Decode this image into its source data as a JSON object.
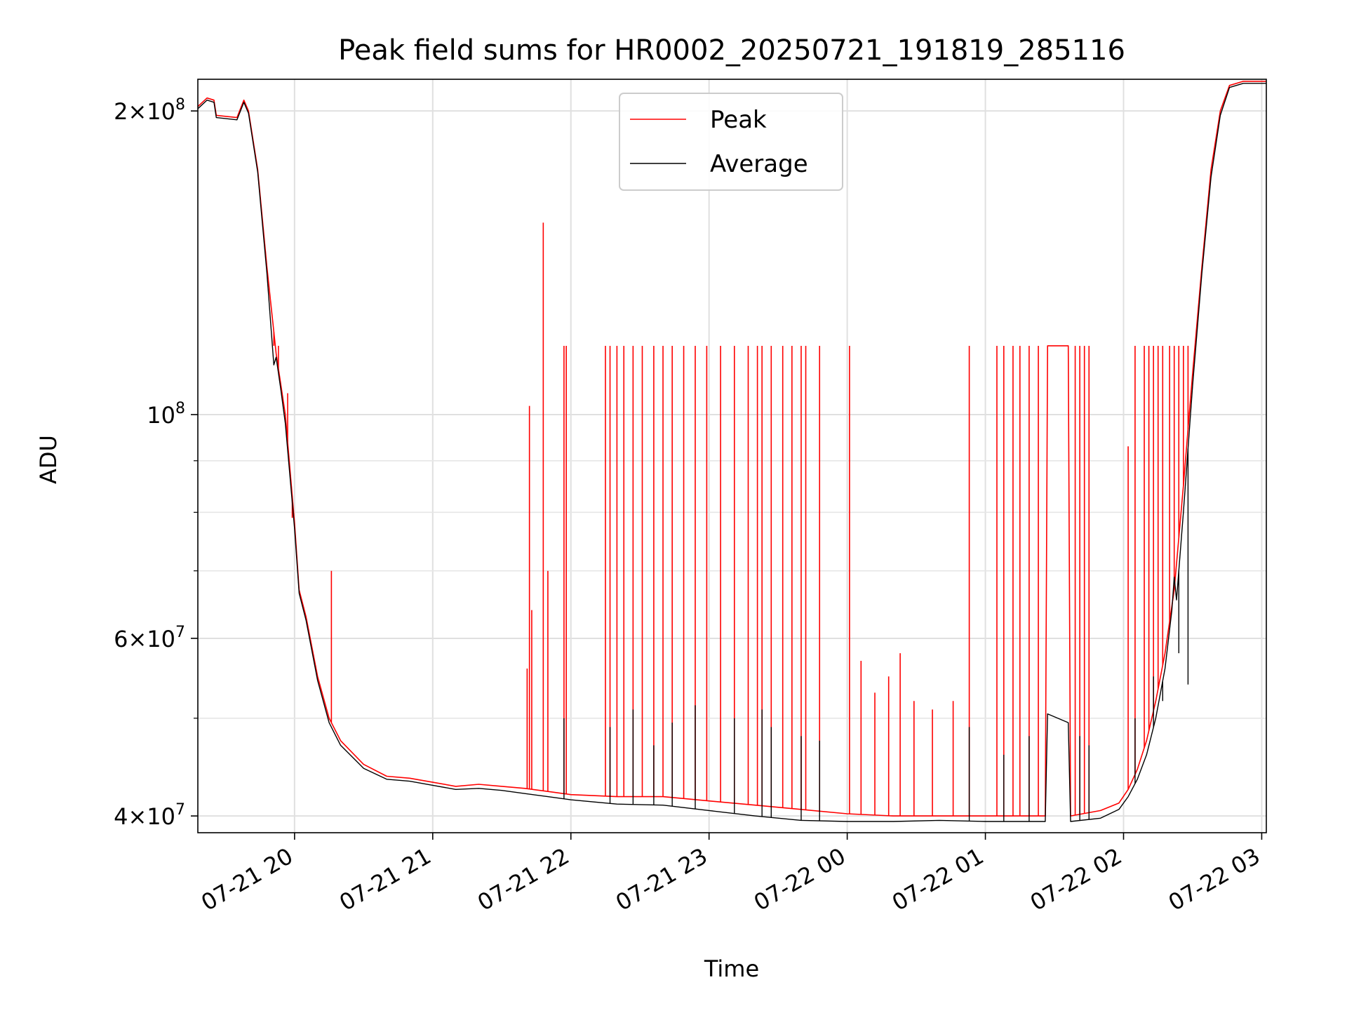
{
  "chart_data": {
    "type": "line",
    "title": "Peak field sums for HR0002_20250721_191819_285116",
    "xlabel": "Time",
    "ylabel": "ADU",
    "yscale": "log",
    "grid": true,
    "legend_position": "upper center",
    "xlim": [
      "2025-07-21 19:18",
      "2025-07-22 03:02"
    ],
    "ylim": [
      38500000,
      215000000
    ],
    "x_ticks": [
      {
        "t": "2025-07-21 20:00",
        "label": "07-21 20"
      },
      {
        "t": "2025-07-21 21:00",
        "label": "07-21 21"
      },
      {
        "t": "2025-07-21 22:00",
        "label": "07-21 22"
      },
      {
        "t": "2025-07-21 23:00",
        "label": "07-21 23"
      },
      {
        "t": "2025-07-22 00:00",
        "label": "07-22 00"
      },
      {
        "t": "2025-07-22 01:00",
        "label": "07-22 01"
      },
      {
        "t": "2025-07-22 02:00",
        "label": "07-22 02"
      },
      {
        "t": "2025-07-22 03:00",
        "label": "07-22 03"
      }
    ],
    "y_ticks": [
      {
        "value": 40000000,
        "mantissa": "4",
        "exp": "7"
      },
      {
        "value": 60000000,
        "mantissa": "6",
        "exp": "7"
      },
      {
        "value": 100000000,
        "mantissa": "",
        "exp": "8"
      },
      {
        "value": 200000000,
        "mantissa": "2",
        "exp": "8"
      }
    ],
    "y_minor_ticks": [
      50000000,
      70000000,
      80000000,
      90000000
    ],
    "series": [
      {
        "name": "Peak",
        "color": "#ff0000",
        "points": [
          [
            "2025-07-21 19:18",
            202000000
          ],
          [
            "2025-07-21 19:22",
            206000000
          ],
          [
            "2025-07-21 19:25",
            205000000
          ],
          [
            "2025-07-21 19:26",
            198000000
          ],
          [
            "2025-07-21 19:35",
            197000000
          ],
          [
            "2025-07-21 19:38",
            205000000
          ],
          [
            "2025-07-21 19:40",
            200000000
          ],
          [
            "2025-07-21 19:44",
            175000000
          ],
          [
            "2025-07-21 19:48",
            140000000
          ],
          [
            "2025-07-21 19:52",
            115000000
          ],
          [
            "2025-07-21 19:56",
            100000000
          ],
          [
            "2025-07-21 20:00",
            78000000
          ],
          [
            "2025-07-21 20:02",
            67000000
          ],
          [
            "2025-07-21 20:05",
            63000000
          ],
          [
            "2025-07-21 20:10",
            55000000
          ],
          [
            "2025-07-21 20:15",
            50000000
          ],
          [
            "2025-07-21 20:20",
            47500000
          ],
          [
            "2025-07-21 20:30",
            45000000
          ],
          [
            "2025-07-21 20:40",
            43800000
          ],
          [
            "2025-07-21 20:50",
            43600000
          ],
          [
            "2025-07-21 21:00",
            43200000
          ],
          [
            "2025-07-21 21:10",
            42800000
          ],
          [
            "2025-07-21 21:20",
            43000000
          ],
          [
            "2025-07-21 21:30",
            42800000
          ],
          [
            "2025-07-21 21:40",
            42600000
          ],
          [
            "2025-07-21 21:50",
            42300000
          ],
          [
            "2025-07-21 22:00",
            42000000
          ],
          [
            "2025-07-21 22:20",
            41800000
          ],
          [
            "2025-07-21 22:40",
            41800000
          ],
          [
            "2025-07-21 23:00",
            41400000
          ],
          [
            "2025-07-21 23:20",
            41000000
          ],
          [
            "2025-07-21 23:40",
            40600000
          ],
          [
            "2025-07-22 00:00",
            40200000
          ],
          [
            "2025-07-22 00:20",
            40000000
          ],
          [
            "2025-07-22 00:40",
            40000000
          ],
          [
            "2025-07-22 01:00",
            40000000
          ],
          [
            "2025-07-22 01:20",
            40000000
          ],
          [
            "2025-07-22 01:26",
            40000000
          ],
          [
            "2025-07-22 01:27",
            117000000
          ],
          [
            "2025-07-22 01:36",
            117000000
          ],
          [
            "2025-07-22 01:37",
            40000000
          ],
          [
            "2025-07-22 01:50",
            40500000
          ],
          [
            "2025-07-22 01:58",
            41200000
          ],
          [
            "2025-07-22 02:02",
            42500000
          ],
          [
            "2025-07-22 02:06",
            44500000
          ],
          [
            "2025-07-22 02:10",
            47500000
          ],
          [
            "2025-07-22 02:14",
            52000000
          ],
          [
            "2025-07-22 02:18",
            58000000
          ],
          [
            "2025-07-22 02:22",
            67000000
          ],
          [
            "2025-07-22 02:26",
            85000000
          ],
          [
            "2025-07-22 02:30",
            110000000
          ],
          [
            "2025-07-22 02:34",
            140000000
          ],
          [
            "2025-07-22 02:38",
            175000000
          ],
          [
            "2025-07-22 02:42",
            200000000
          ],
          [
            "2025-07-22 02:46",
            212000000
          ],
          [
            "2025-07-22 02:52",
            214000000
          ],
          [
            "2025-07-22 03:02",
            214000000
          ]
        ],
        "spikes": [
          [
            "2025-07-21 19:51",
            117000000
          ],
          [
            "2025-07-21 19:53",
            117000000
          ],
          [
            "2025-07-21 19:57",
            105000000
          ],
          [
            "2025-07-21 19:59",
            79000000
          ],
          [
            "2025-07-21 20:16",
            70000000
          ],
          [
            "2025-07-21 21:41",
            56000000
          ],
          [
            "2025-07-21 21:42",
            102000000
          ],
          [
            "2025-07-21 21:43",
            64000000
          ],
          [
            "2025-07-21 21:48",
            155000000
          ],
          [
            "2025-07-21 21:50",
            70000000
          ],
          [
            "2025-07-21 21:57",
            117000000
          ],
          [
            "2025-07-21 21:58",
            117000000
          ],
          [
            "2025-07-21 22:15",
            117000000
          ],
          [
            "2025-07-21 22:17",
            117000000
          ],
          [
            "2025-07-21 22:20",
            117000000
          ],
          [
            "2025-07-21 22:23",
            117000000
          ],
          [
            "2025-07-21 22:27",
            117000000
          ],
          [
            "2025-07-21 22:31",
            117000000
          ],
          [
            "2025-07-21 22:36",
            117000000
          ],
          [
            "2025-07-21 22:40",
            117000000
          ],
          [
            "2025-07-21 22:44",
            117000000
          ],
          [
            "2025-07-21 22:49",
            117000000
          ],
          [
            "2025-07-21 22:54",
            117000000
          ],
          [
            "2025-07-21 22:59",
            117000000
          ],
          [
            "2025-07-21 23:05",
            117000000
          ],
          [
            "2025-07-21 23:11",
            117000000
          ],
          [
            "2025-07-21 23:17",
            117000000
          ],
          [
            "2025-07-21 23:21",
            117000000
          ],
          [
            "2025-07-21 23:23",
            117000000
          ],
          [
            "2025-07-21 23:27",
            117000000
          ],
          [
            "2025-07-21 23:32",
            117000000
          ],
          [
            "2025-07-21 23:36",
            117000000
          ],
          [
            "2025-07-21 23:40",
            117000000
          ],
          [
            "2025-07-21 23:42",
            117000000
          ],
          [
            "2025-07-21 23:48",
            117000000
          ],
          [
            "2025-07-22 00:01",
            117000000
          ],
          [
            "2025-07-22 00:06",
            57000000
          ],
          [
            "2025-07-22 00:12",
            53000000
          ],
          [
            "2025-07-22 00:18",
            55000000
          ],
          [
            "2025-07-22 00:23",
            58000000
          ],
          [
            "2025-07-22 00:29",
            52000000
          ],
          [
            "2025-07-22 00:37",
            51000000
          ],
          [
            "2025-07-22 00:46",
            52000000
          ],
          [
            "2025-07-22 00:53",
            117000000
          ],
          [
            "2025-07-22 01:05",
            117000000
          ],
          [
            "2025-07-22 01:08",
            117000000
          ],
          [
            "2025-07-22 01:12",
            117000000
          ],
          [
            "2025-07-22 01:15",
            117000000
          ],
          [
            "2025-07-22 01:19",
            117000000
          ],
          [
            "2025-07-22 01:23",
            117000000
          ],
          [
            "2025-07-22 01:39",
            117000000
          ],
          [
            "2025-07-22 01:41",
            117000000
          ],
          [
            "2025-07-22 01:43",
            117000000
          ],
          [
            "2025-07-22 01:45",
            117000000
          ],
          [
            "2025-07-22 02:02",
            93000000
          ],
          [
            "2025-07-22 02:05",
            117000000
          ],
          [
            "2025-07-22 02:09",
            117000000
          ],
          [
            "2025-07-22 02:11",
            117000000
          ],
          [
            "2025-07-22 02:13",
            117000000
          ],
          [
            "2025-07-22 02:15",
            117000000
          ],
          [
            "2025-07-22 02:17",
            117000000
          ],
          [
            "2025-07-22 02:20",
            117000000
          ],
          [
            "2025-07-22 02:22",
            117000000
          ],
          [
            "2025-07-22 02:24",
            117000000
          ],
          [
            "2025-07-22 02:26",
            117000000
          ],
          [
            "2025-07-22 02:28",
            117000000
          ],
          [
            "2025-07-22 02:31",
            117000000
          ]
        ]
      },
      {
        "name": "Average",
        "color": "#000000",
        "points": [
          [
            "2025-07-21 19:18",
            201000000
          ],
          [
            "2025-07-21 19:22",
            205000000
          ],
          [
            "2025-07-21 19:25",
            204000000
          ],
          [
            "2025-07-21 19:26",
            197000000
          ],
          [
            "2025-07-21 19:35",
            196000000
          ],
          [
            "2025-07-21 19:38",
            204000000
          ],
          [
            "2025-07-21 19:40",
            199000000
          ],
          [
            "2025-07-21 19:44",
            174000000
          ],
          [
            "2025-07-21 19:48",
            138000000
          ],
          [
            "2025-07-21 19:51",
            112000000
          ],
          [
            "2025-07-21 19:52",
            114000000
          ],
          [
            "2025-07-21 19:54",
            106000000
          ],
          [
            "2025-07-21 19:56",
            98000000
          ],
          [
            "2025-07-21 20:00",
            77000000
          ],
          [
            "2025-07-21 20:02",
            66500000
          ],
          [
            "2025-07-21 20:05",
            62500000
          ],
          [
            "2025-07-21 20:10",
            54500000
          ],
          [
            "2025-07-21 20:15",
            49500000
          ],
          [
            "2025-07-21 20:20",
            47000000
          ],
          [
            "2025-07-21 20:30",
            44600000
          ],
          [
            "2025-07-21 20:40",
            43500000
          ],
          [
            "2025-07-21 20:50",
            43300000
          ],
          [
            "2025-07-21 21:00",
            42900000
          ],
          [
            "2025-07-21 21:10",
            42500000
          ],
          [
            "2025-07-21 21:20",
            42600000
          ],
          [
            "2025-07-21 21:30",
            42400000
          ],
          [
            "2025-07-21 21:40",
            42100000
          ],
          [
            "2025-07-21 21:50",
            41800000
          ],
          [
            "2025-07-21 22:00",
            41500000
          ],
          [
            "2025-07-21 22:20",
            41100000
          ],
          [
            "2025-07-21 22:40",
            41000000
          ],
          [
            "2025-07-21 23:00",
            40500000
          ],
          [
            "2025-07-21 23:20",
            40000000
          ],
          [
            "2025-07-21 23:40",
            39600000
          ],
          [
            "2025-07-22 00:00",
            39500000
          ],
          [
            "2025-07-22 00:20",
            39500000
          ],
          [
            "2025-07-22 00:40",
            39600000
          ],
          [
            "2025-07-22 01:00",
            39500000
          ],
          [
            "2025-07-22 01:26",
            39500000
          ],
          [
            "2025-07-22 01:27",
            50500000
          ],
          [
            "2025-07-22 01:36",
            49500000
          ],
          [
            "2025-07-22 01:37",
            39500000
          ],
          [
            "2025-07-22 01:50",
            39800000
          ],
          [
            "2025-07-22 01:58",
            40600000
          ],
          [
            "2025-07-22 02:02",
            41800000
          ],
          [
            "2025-07-22 02:06",
            43500000
          ],
          [
            "2025-07-22 02:10",
            46000000
          ],
          [
            "2025-07-22 02:14",
            50000000
          ],
          [
            "2025-07-22 02:18",
            56000000
          ],
          [
            "2025-07-22 02:21",
            64000000
          ],
          [
            "2025-07-22 02:22",
            69000000
          ],
          [
            "2025-07-22 02:23",
            65500000
          ],
          [
            "2025-07-22 02:26",
            80000000
          ],
          [
            "2025-07-22 02:30",
            107000000
          ],
          [
            "2025-07-22 02:34",
            138000000
          ],
          [
            "2025-07-22 02:38",
            172000000
          ],
          [
            "2025-07-22 02:42",
            198000000
          ],
          [
            "2025-07-22 02:46",
            211000000
          ],
          [
            "2025-07-22 02:52",
            213000000
          ],
          [
            "2025-07-22 03:02",
            213000000
          ]
        ],
        "spikes": [
          [
            "2025-07-21 21:57",
            50000000
          ],
          [
            "2025-07-21 22:17",
            49000000
          ],
          [
            "2025-07-21 22:27",
            51000000
          ],
          [
            "2025-07-21 22:36",
            47000000
          ],
          [
            "2025-07-21 22:44",
            49500000
          ],
          [
            "2025-07-21 22:54",
            51500000
          ],
          [
            "2025-07-21 23:11",
            50000000
          ],
          [
            "2025-07-21 23:23",
            51000000
          ],
          [
            "2025-07-21 23:27",
            49000000
          ],
          [
            "2025-07-21 23:40",
            48000000
          ],
          [
            "2025-07-21 23:48",
            47500000
          ],
          [
            "2025-07-22 00:53",
            49000000
          ],
          [
            "2025-07-22 01:08",
            46000000
          ],
          [
            "2025-07-22 01:19",
            48000000
          ],
          [
            "2025-07-22 01:41",
            48000000
          ],
          [
            "2025-07-22 01:45",
            47000000
          ],
          [
            "2025-07-22 02:05",
            50000000
          ],
          [
            "2025-07-22 02:13",
            55000000
          ],
          [
            "2025-07-22 02:17",
            52000000
          ],
          [
            "2025-07-22 02:24",
            58000000
          ],
          [
            "2025-07-22 02:28",
            54000000
          ]
        ]
      }
    ]
  }
}
